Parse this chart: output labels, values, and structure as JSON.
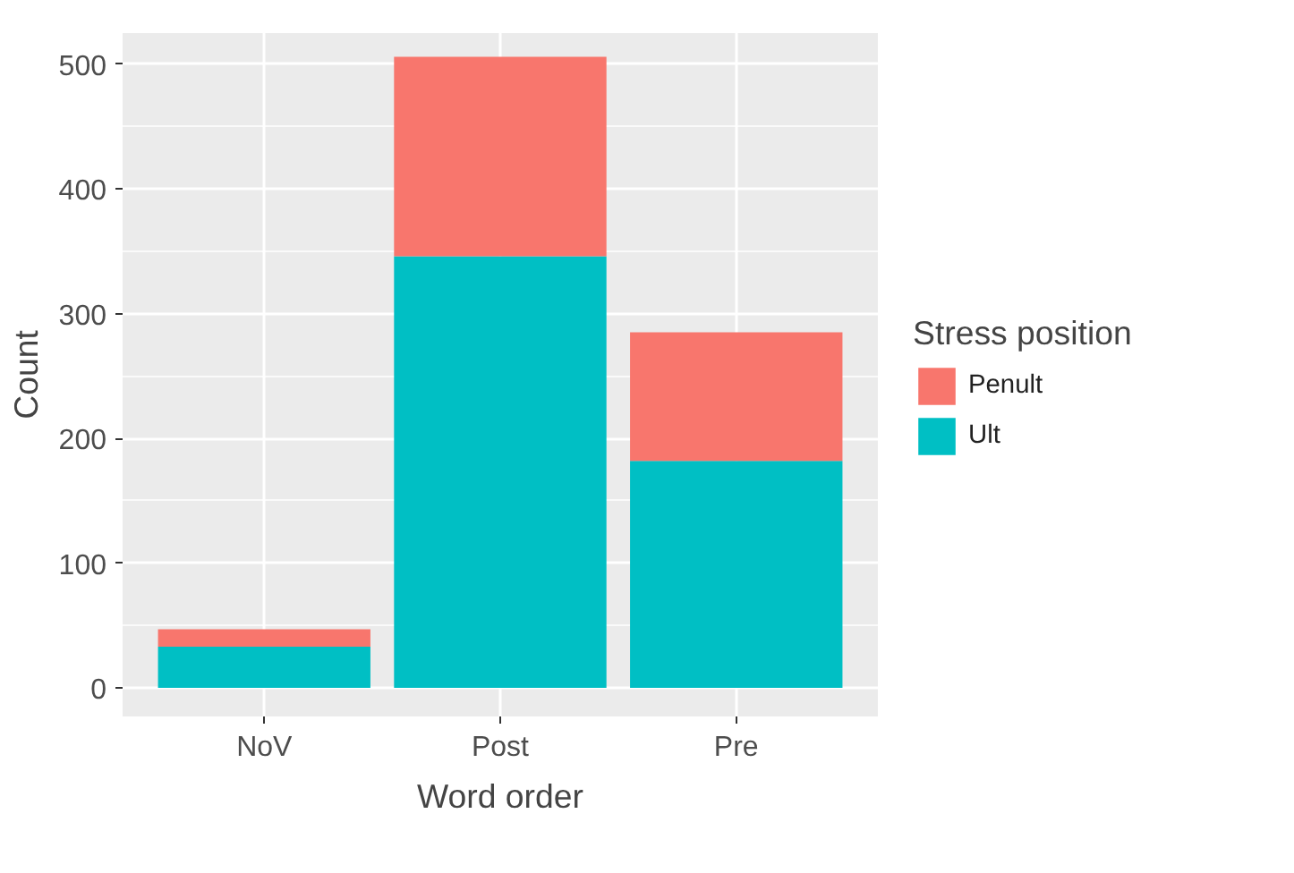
{
  "chart_data": {
    "type": "bar",
    "stacked": true,
    "xlabel": "Word order",
    "ylabel": "Count",
    "legend_title": "Stress position",
    "categories": [
      "NoV",
      "Post",
      "Pre"
    ],
    "series": [
      {
        "name": "Ult",
        "color": "#00bfc4",
        "values": [
          33,
          346,
          182
        ]
      },
      {
        "name": "Penult",
        "color": "#f8766d",
        "values": [
          14,
          160,
          103
        ]
      }
    ],
    "ylim": [
      -23,
      525
    ],
    "yticks": [
      0,
      100,
      200,
      300,
      400,
      500
    ],
    "grid": true,
    "legend": "right"
  }
}
